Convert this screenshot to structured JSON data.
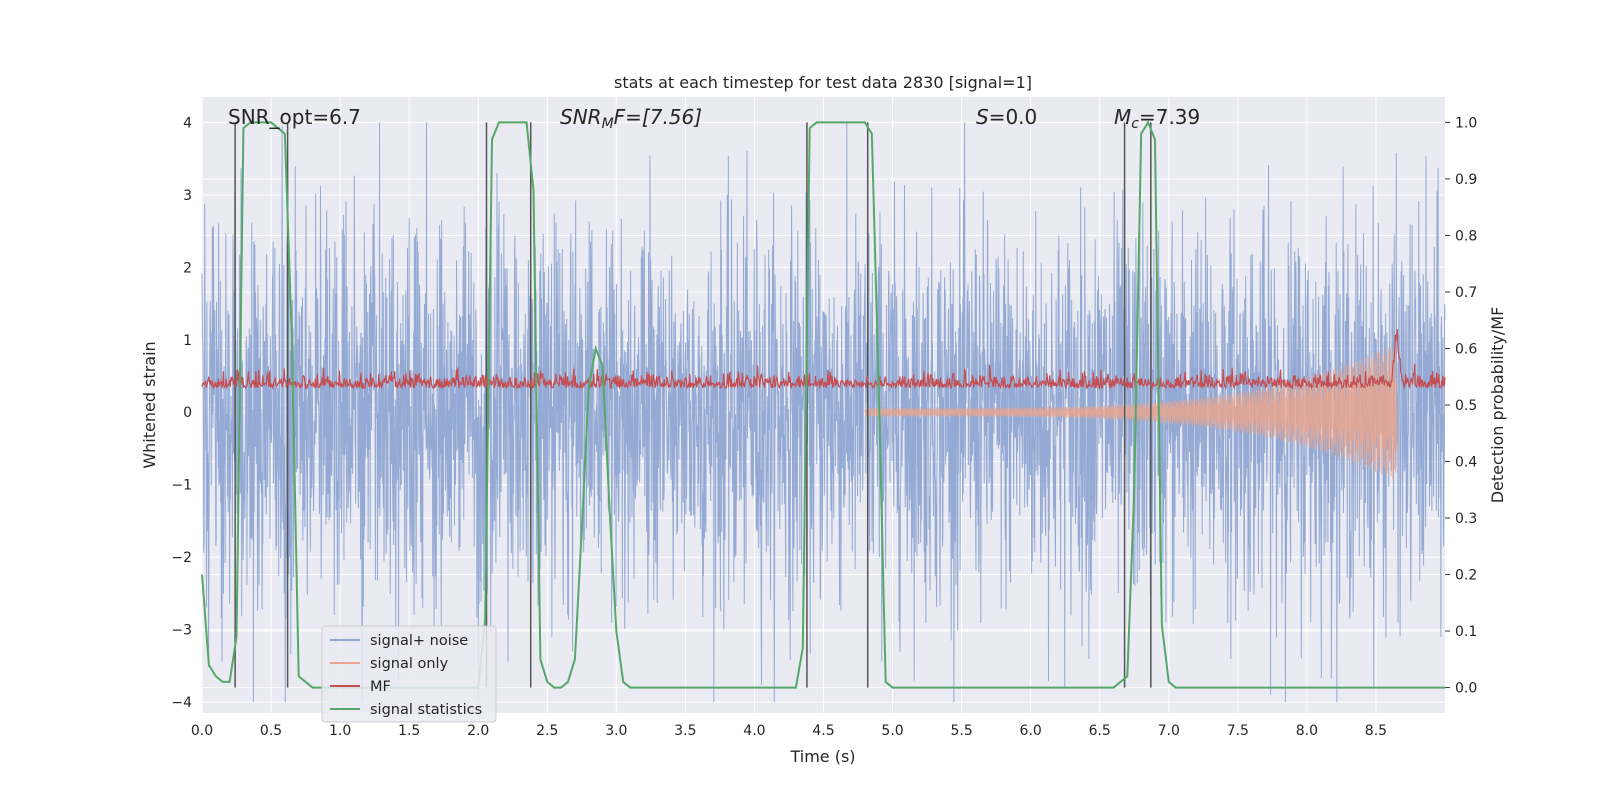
{
  "chart_data": {
    "type": "line",
    "title": "stats at each timestep for test data 2830 [signal=1]",
    "xlabel": "Time (s)",
    "ylabel_left": "Whitened strain",
    "ylabel_right": "Detection probability/MF",
    "xlim": [
      0.0,
      9.0
    ],
    "ylim_left": [
      -4.15,
      4.35
    ],
    "ylim_right": [
      -0.045,
      1.045
    ],
    "x_ticks": [
      "0.0",
      "0.5",
      "1.0",
      "1.5",
      "2.0",
      "2.5",
      "3.0",
      "3.5",
      "4.0",
      "4.5",
      "5.0",
      "5.5",
      "6.0",
      "6.5",
      "7.0",
      "7.5",
      "8.0",
      "8.5"
    ],
    "y_left_ticks": [
      "4",
      "3",
      "2",
      "1",
      "0",
      "−1",
      "−2",
      "−3",
      "−4"
    ],
    "y_right_ticks": [
      "1.0",
      "0.9",
      "0.8",
      "0.7",
      "0.6",
      "0.5",
      "0.4",
      "0.3",
      "0.2",
      "0.1",
      "0.0"
    ],
    "grid": true,
    "annotations": {
      "snr_opt": "SNR_opt=6.7",
      "snr_mf_sym": "SNR",
      "snr_mf_sub": "M",
      "snr_mf_rest": "F=[7.56]",
      "s_sym": "S",
      "s_rest": "=0.0",
      "mc_sym": "M",
      "mc_sub": "c",
      "mc_rest": "=7.39"
    },
    "vertical_lines_s": [
      0.24,
      0.62,
      2.06,
      2.38,
      4.38,
      4.82,
      6.68,
      6.87
    ],
    "series": [
      {
        "name": "signal+ noise",
        "color": "#8fa6d2",
        "kind": "noise",
        "amplitude_std": 1.3,
        "range": [
          -4.0,
          4.0
        ]
      },
      {
        "name": "signal only",
        "color": "#e8a58f",
        "kind": "chirp",
        "start": 4.8,
        "peak_time": 8.65,
        "peak": 0.9
      },
      {
        "name": "MF",
        "color": "#c44e52",
        "kind": "mf",
        "baseline": 0.53,
        "peak_time": 8.65,
        "peak": 0.62
      },
      {
        "name": "signal statistics",
        "color": "#55a868",
        "kind": "steps",
        "x": [
          0.0,
          0.05,
          0.1,
          0.15,
          0.2,
          0.25,
          0.3,
          0.35,
          0.4,
          0.45,
          0.5,
          0.55,
          0.6,
          0.65,
          0.7,
          0.75,
          0.8,
          0.85,
          0.9,
          1.0,
          1.5,
          2.0,
          2.05,
          2.1,
          2.15,
          2.2,
          2.25,
          2.3,
          2.35,
          2.4,
          2.45,
          2.5,
          2.55,
          2.6,
          2.65,
          2.7,
          2.75,
          2.8,
          2.85,
          2.9,
          2.95,
          3.0,
          3.05,
          3.1,
          3.15,
          3.2,
          3.5,
          4.0,
          4.3,
          4.35,
          4.4,
          4.45,
          4.5,
          4.6,
          4.7,
          4.8,
          4.85,
          4.9,
          4.95,
          5.0,
          5.5,
          6.0,
          6.5,
          6.6,
          6.65,
          6.7,
          6.75,
          6.8,
          6.85,
          6.9,
          6.95,
          7.0,
          7.05,
          7.5,
          8.0,
          8.5,
          9.0
        ],
        "y": [
          0.2,
          0.04,
          0.02,
          0.01,
          0.01,
          0.09,
          0.99,
          1.0,
          1.0,
          1.0,
          1.0,
          0.99,
          0.98,
          0.62,
          0.02,
          0.01,
          0.0,
          0.0,
          0.0,
          0.0,
          0.0,
          0.0,
          0.12,
          0.97,
          1.0,
          1.0,
          1.0,
          1.0,
          1.0,
          0.88,
          0.05,
          0.01,
          0.0,
          0.0,
          0.01,
          0.05,
          0.28,
          0.53,
          0.6,
          0.57,
          0.32,
          0.1,
          0.01,
          0.0,
          0.0,
          0.0,
          0.0,
          0.0,
          0.0,
          0.07,
          0.99,
          1.0,
          1.0,
          1.0,
          1.0,
          1.0,
          0.98,
          0.53,
          0.01,
          0.0,
          0.0,
          0.0,
          0.0,
          0.0,
          0.01,
          0.02,
          0.35,
          0.98,
          1.0,
          0.97,
          0.11,
          0.01,
          0.0,
          0.0,
          0.0,
          0.0,
          0.0
        ]
      }
    ],
    "legend": {
      "position": "lower-left",
      "entries": [
        "signal+ noise",
        "signal only",
        "MF",
        "signal statistics"
      ]
    }
  }
}
